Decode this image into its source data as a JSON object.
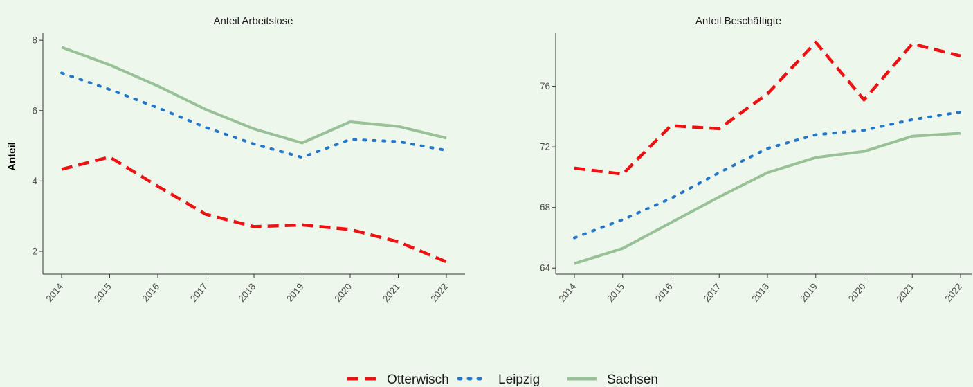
{
  "chart_data": [
    {
      "type": "line",
      "title": "Anteil Arbeitslose",
      "xlabel": "",
      "ylabel": "Anteil",
      "x": [
        "2014",
        "2015",
        "2016",
        "2017",
        "2018",
        "2019",
        "2020",
        "2021",
        "2022"
      ],
      "ylim": [
        1.35,
        8.2
      ],
      "yticks": [
        "2",
        "4",
        "6",
        "8"
      ],
      "series": [
        {
          "name": "Otterwisch",
          "color": "#ee1111",
          "dash": "dashed",
          "values": [
            4.33,
            4.68,
            3.85,
            3.05,
            2.7,
            2.75,
            2.62,
            2.27,
            1.7
          ]
        },
        {
          "name": "Leipzig",
          "color": "#2277cc",
          "dash": "dotted",
          "values": [
            7.07,
            6.6,
            6.08,
            5.52,
            5.05,
            4.67,
            5.18,
            5.12,
            4.87
          ]
        },
        {
          "name": "Sachsen",
          "color": "#98c198",
          "dash": "solid",
          "values": [
            7.8,
            7.3,
            6.7,
            6.03,
            5.48,
            5.08,
            5.68,
            5.55,
            5.22
          ]
        }
      ]
    },
    {
      "type": "line",
      "title": "Anteil Beschäftigte",
      "xlabel": "",
      "ylabel": "",
      "x": [
        "2014",
        "2015",
        "2016",
        "2017",
        "2018",
        "2019",
        "2020",
        "2021",
        "2022"
      ],
      "ylim": [
        63.6,
        79.5
      ],
      "yticks": [
        "64",
        "68",
        "72",
        "76"
      ],
      "series": [
        {
          "name": "Otterwisch",
          "color": "#ee1111",
          "dash": "dashed",
          "values": [
            70.6,
            70.2,
            73.4,
            73.2,
            75.5,
            78.9,
            75.1,
            78.8,
            78.0
          ]
        },
        {
          "name": "Leipzig",
          "color": "#2277cc",
          "dash": "dotted",
          "values": [
            66.0,
            67.2,
            68.6,
            70.3,
            71.9,
            72.8,
            73.1,
            73.8,
            74.3
          ]
        },
        {
          "name": "Sachsen",
          "color": "#98c198",
          "dash": "solid",
          "values": [
            64.3,
            65.3,
            67.0,
            68.7,
            70.3,
            71.3,
            71.7,
            72.7,
            72.9
          ]
        }
      ]
    }
  ],
  "legend": {
    "placement": "bottom",
    "items": [
      {
        "label": "Otterwisch",
        "color": "#ee1111",
        "dash": "dashed"
      },
      {
        "label": "Leipzig",
        "color": "#2277cc",
        "dash": "dotted"
      },
      {
        "label": "Sachsen",
        "color": "#98c198",
        "dash": "solid"
      }
    ]
  }
}
